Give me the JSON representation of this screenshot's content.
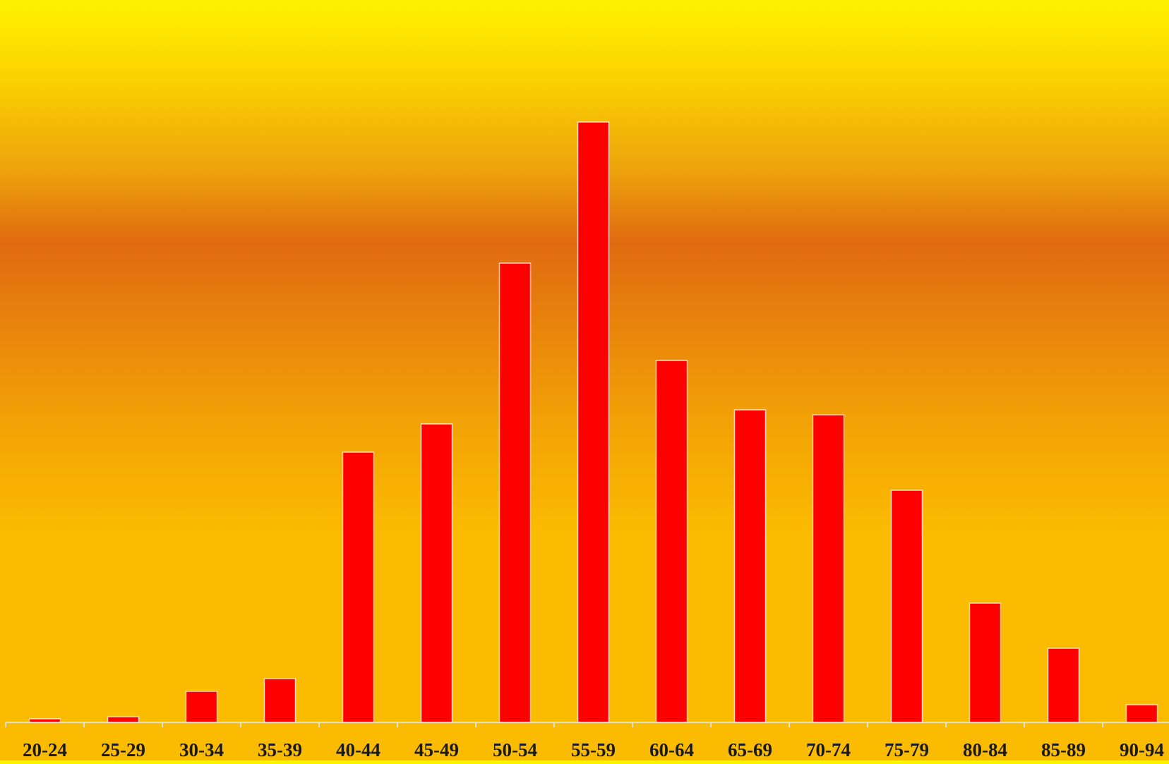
{
  "chart_data": {
    "type": "bar",
    "title": "",
    "xlabel": "",
    "ylabel": "",
    "categories": [
      "20-24",
      "25-29",
      "30-34",
      "35-39",
      "40-44",
      "45-49",
      "50-54",
      "55-59",
      "60-64",
      "65-69",
      "70-74",
      "75-79",
      "80-84",
      "85-89",
      "90-94"
    ],
    "values": [
      5,
      8,
      44,
      62,
      383,
      423,
      651,
      851,
      513,
      443,
      436,
      329,
      169,
      105,
      25
    ],
    "ylim": [
      0,
      1000
    ],
    "grid": false,
    "legend": "none",
    "bar_color": "#ff0000",
    "bar_outline_color": "#ffffff",
    "background_top_color": "#fff200",
    "background_mid_color": "#e06a10",
    "background_bottom_color": "#fbbb00"
  }
}
